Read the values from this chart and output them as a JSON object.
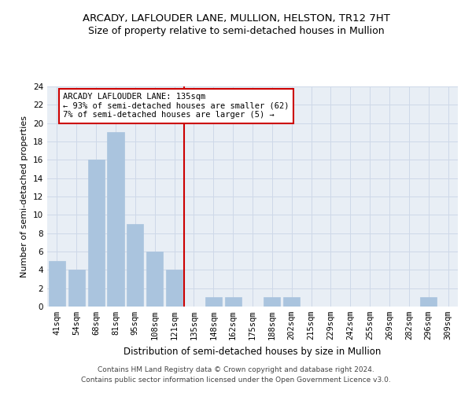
{
  "title": "ARCADY, LAFLOUDER LANE, MULLION, HELSTON, TR12 7HT",
  "subtitle": "Size of property relative to semi-detached houses in Mullion",
  "xlabel": "Distribution of semi-detached houses by size in Mullion",
  "ylabel": "Number of semi-detached properties",
  "categories": [
    "41sqm",
    "54sqm",
    "68sqm",
    "81sqm",
    "95sqm",
    "108sqm",
    "121sqm",
    "135sqm",
    "148sqm",
    "162sqm",
    "175sqm",
    "188sqm",
    "202sqm",
    "215sqm",
    "229sqm",
    "242sqm",
    "255sqm",
    "269sqm",
    "282sqm",
    "296sqm",
    "309sqm"
  ],
  "values": [
    5,
    4,
    16,
    19,
    9,
    6,
    4,
    0,
    1,
    1,
    0,
    1,
    1,
    0,
    0,
    0,
    0,
    0,
    0,
    1,
    0
  ],
  "bar_color": "#aac4de",
  "bar_edge_color": "#aac4de",
  "subject_line_index": 7,
  "subject_line_color": "#cc0000",
  "annotation_line1": "ARCADY LAFLOUDER LANE: 135sqm",
  "annotation_line2": "← 93% of semi-detached houses are smaller (62)",
  "annotation_line3": "7% of semi-detached houses are larger (5) →",
  "annotation_box_color": "#cc0000",
  "ylim": [
    0,
    24
  ],
  "yticks": [
    0,
    2,
    4,
    6,
    8,
    10,
    12,
    14,
    16,
    18,
    20,
    22,
    24
  ],
  "grid_color": "#ced8e8",
  "background_color": "#e8eef5",
  "footer_line1": "Contains HM Land Registry data © Crown copyright and database right 2024.",
  "footer_line2": "Contains public sector information licensed under the Open Government Licence v3.0.",
  "title_fontsize": 9.5,
  "subtitle_fontsize": 9,
  "xlabel_fontsize": 8.5,
  "ylabel_fontsize": 8,
  "tick_fontsize": 7.5,
  "annotation_fontsize": 7.5,
  "footer_fontsize": 6.5
}
